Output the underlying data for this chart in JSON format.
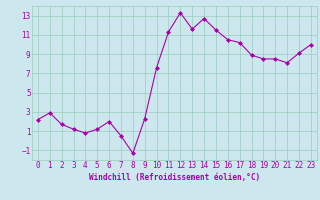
{
  "x": [
    0,
    1,
    2,
    3,
    4,
    5,
    6,
    7,
    8,
    9,
    10,
    11,
    12,
    13,
    14,
    15,
    16,
    17,
    18,
    19,
    20,
    21,
    22,
    23
  ],
  "y": [
    2.2,
    2.9,
    1.7,
    1.2,
    0.8,
    1.2,
    2.0,
    0.5,
    -1.3,
    2.3,
    7.6,
    11.3,
    13.3,
    11.6,
    12.7,
    11.5,
    10.5,
    10.2,
    8.9,
    8.5,
    8.5,
    8.1,
    9.1,
    10.0
  ],
  "line_color": "#aa00aa",
  "marker": "D",
  "marker_size": 2,
  "bg_color": "#cce8ee",
  "grid_color": "#99ccbb",
  "xlabel": "Windchill (Refroidissement éolien,°C)",
  "xlabel_color": "#aa00aa",
  "tick_color": "#aa00aa",
  "ylim": [
    -2,
    14
  ],
  "xlim": [
    -0.5,
    23.5
  ],
  "yticks": [
    -1,
    1,
    3,
    5,
    7,
    9,
    11,
    13
  ],
  "xticks": [
    0,
    1,
    2,
    3,
    4,
    5,
    6,
    7,
    8,
    9,
    10,
    11,
    12,
    13,
    14,
    15,
    16,
    17,
    18,
    19,
    20,
    21,
    22,
    23
  ],
  "label_fontsize": 5.5,
  "tick_fontsize": 5.5
}
